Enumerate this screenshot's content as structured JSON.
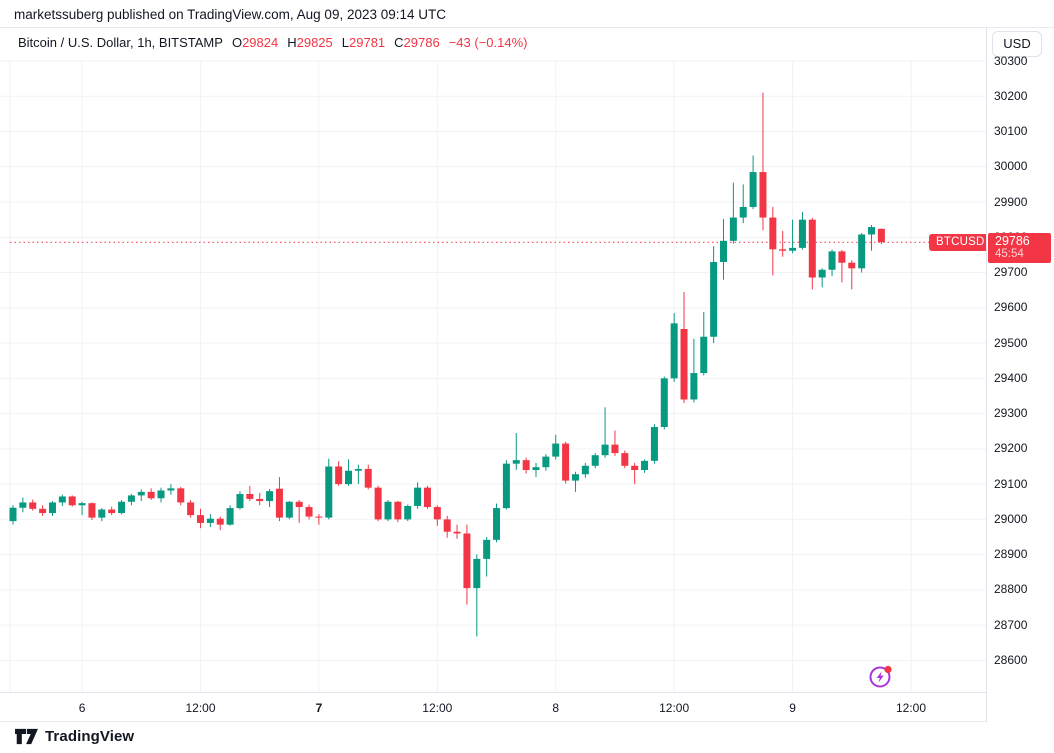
{
  "attribution": {
    "text": "marketssuberg published on TradingView.com, Aug 09, 2023 09:14 UTC"
  },
  "header": {
    "symbol_title": "Bitcoin / U.S. Dollar, 1h, BITSTAMP",
    "ohlc": [
      {
        "label": "O",
        "value": "29824"
      },
      {
        "label": "H",
        "value": "29825"
      },
      {
        "label": "L",
        "value": "29781"
      },
      {
        "label": "C",
        "value": "29786"
      }
    ],
    "change": "−43 (−0.14%)"
  },
  "price_scale": {
    "currency": "USD"
  },
  "price_label": {
    "symbol": "BTCUSD",
    "price": "29786",
    "countdown": "45:54"
  },
  "footer": {
    "logo_text": "TradingView"
  },
  "colors": {
    "up": "#089981",
    "down": "#F23645",
    "grid": "#F0F2F6",
    "axis_border": "#E0E3EB",
    "text": "#131722",
    "accent_red": "#F23645",
    "marker_purple": "#A835DD"
  },
  "chart_data": {
    "type": "candlestick",
    "title": "Bitcoin / U.S. Dollar, 1h, BITSTAMP",
    "symbol": "BTCUSD",
    "exchange": "BITSTAMP",
    "interval": "1h",
    "currency": "USD",
    "ohlc_current": {
      "open": 29824,
      "high": 29825,
      "low": 29781,
      "close": 29786,
      "change": -43,
      "change_pct": -0.14
    },
    "price_line": 29786,
    "ylim": [
      28550,
      30340
    ],
    "grid": true,
    "y_ticks": [
      30300,
      30200,
      30100,
      30000,
      29900,
      29800,
      29700,
      29600,
      29500,
      29400,
      29300,
      29200,
      29100,
      29000,
      28900,
      28800,
      28700,
      28600
    ],
    "x_ticks": [
      {
        "label": "6",
        "i": 7,
        "bold": false
      },
      {
        "label": "12:00",
        "i": 19,
        "bold": false
      },
      {
        "label": "7",
        "i": 31,
        "bold": true
      },
      {
        "label": "12:00",
        "i": 43,
        "bold": false
      },
      {
        "label": "8",
        "i": 55,
        "bold": false
      },
      {
        "label": "12:00",
        "i": 67,
        "bold": false
      },
      {
        "label": "9",
        "i": 79,
        "bold": false
      },
      {
        "label": "12:00",
        "i": 91,
        "bold": false
      }
    ],
    "candles": [
      [
        28995,
        29040,
        28985,
        29033
      ],
      [
        29033,
        29062,
        29020,
        29048
      ],
      [
        29048,
        29056,
        29025,
        29030
      ],
      [
        29030,
        29040,
        29010,
        29018
      ],
      [
        29018,
        29052,
        29010,
        29048
      ],
      [
        29048,
        29070,
        29038,
        29065
      ],
      [
        29065,
        29068,
        29036,
        29040
      ],
      [
        29040,
        29050,
        29012,
        29046
      ],
      [
        29046,
        29048,
        28998,
        29005
      ],
      [
        29005,
        29032,
        28995,
        29028
      ],
      [
        29028,
        29036,
        29012,
        29018
      ],
      [
        29018,
        29055,
        29014,
        29050
      ],
      [
        29050,
        29072,
        29040,
        29068
      ],
      [
        29068,
        29085,
        29052,
        29078
      ],
      [
        29078,
        29088,
        29055,
        29060
      ],
      [
        29060,
        29090,
        29048,
        29082
      ],
      [
        29082,
        29100,
        29070,
        29088
      ],
      [
        29088,
        29092,
        29040,
        29048
      ],
      [
        29048,
        29055,
        29005,
        29012
      ],
      [
        29012,
        29030,
        28975,
        28990
      ],
      [
        28990,
        29015,
        28978,
        29002
      ],
      [
        29002,
        29008,
        28970,
        28985
      ],
      [
        28985,
        29040,
        28982,
        29032
      ],
      [
        29032,
        29080,
        29028,
        29072
      ],
      [
        29072,
        29095,
        29052,
        29058
      ],
      [
        29058,
        29075,
        29040,
        29052
      ],
      [
        29052,
        29086,
        29035,
        29080
      ],
      [
        29087,
        29120,
        28995,
        29005
      ],
      [
        29005,
        29052,
        29000,
        29050
      ],
      [
        29050,
        29055,
        28990,
        29035
      ],
      [
        29035,
        29042,
        29000,
        29008
      ],
      [
        29008,
        29015,
        28985,
        29005
      ],
      [
        29005,
        29172,
        29000,
        29150
      ],
      [
        29150,
        29165,
        29095,
        29100
      ],
      [
        29100,
        29170,
        29095,
        29138
      ],
      [
        29138,
        29155,
        29100,
        29143
      ],
      [
        29143,
        29155,
        29085,
        29090
      ],
      [
        29090,
        29095,
        28995,
        29000
      ],
      [
        29000,
        29055,
        28995,
        29050
      ],
      [
        29050,
        29052,
        28992,
        29000
      ],
      [
        29000,
        29042,
        28995,
        29038
      ],
      [
        29038,
        29105,
        29030,
        29090
      ],
      [
        29090,
        29095,
        29030,
        29035
      ],
      [
        29035,
        29040,
        28982,
        29000
      ],
      [
        29000,
        29010,
        28948,
        28965
      ],
      [
        28965,
        28985,
        28945,
        28960
      ],
      [
        28960,
        28985,
        28758,
        28805
      ],
      [
        28805,
        28900,
        28668,
        28888
      ],
      [
        28888,
        28950,
        28838,
        28942
      ],
      [
        28942,
        29045,
        28935,
        29032
      ],
      [
        29032,
        29168,
        29028,
        29158
      ],
      [
        29158,
        29245,
        29140,
        29168
      ],
      [
        29168,
        29175,
        29130,
        29140
      ],
      [
        29140,
        29160,
        29120,
        29148
      ],
      [
        29148,
        29185,
        29138,
        29178
      ],
      [
        29178,
        29240,
        29170,
        29215
      ],
      [
        29215,
        29220,
        29102,
        29110
      ],
      [
        29110,
        29135,
        29078,
        29128
      ],
      [
        29128,
        29160,
        29118,
        29152
      ],
      [
        29152,
        29188,
        29145,
        29182
      ],
      [
        29182,
        29318,
        29175,
        29212
      ],
      [
        29212,
        29252,
        29180,
        29188
      ],
      [
        29188,
        29195,
        29145,
        29152
      ],
      [
        29152,
        29160,
        29100,
        29140
      ],
      [
        29140,
        29170,
        29132,
        29166
      ],
      [
        29166,
        29270,
        29158,
        29262
      ],
      [
        29262,
        29405,
        29255,
        29400
      ],
      [
        29400,
        29585,
        29390,
        29556
      ],
      [
        29540,
        29645,
        29330,
        29340
      ],
      [
        29340,
        29512,
        29332,
        29415
      ],
      [
        29415,
        29588,
        29408,
        29518
      ],
      [
        29518,
        29775,
        29500,
        29730
      ],
      [
        29730,
        29852,
        29680,
        29790
      ],
      [
        29790,
        29955,
        29782,
        29856
      ],
      [
        29856,
        29950,
        29840,
        29886
      ],
      [
        29886,
        30032,
        29880,
        29985
      ],
      [
        29985,
        30210,
        29820,
        29856
      ],
      [
        29856,
        29886,
        29692,
        29766
      ],
      [
        29766,
        29818,
        29745,
        29762
      ],
      [
        29762,
        29850,
        29755,
        29770
      ],
      [
        29770,
        29872,
        29765,
        29850
      ],
      [
        29850,
        29855,
        29652,
        29686
      ],
      [
        29686,
        29712,
        29658,
        29708
      ],
      [
        29708,
        29765,
        29690,
        29760
      ],
      [
        29760,
        29764,
        29672,
        29728
      ],
      [
        29728,
        29735,
        29652,
        29712
      ],
      [
        29712,
        29812,
        29700,
        29808
      ],
      [
        29808,
        29835,
        29762,
        29829
      ],
      [
        29824,
        29825,
        29781,
        29786
      ]
    ]
  }
}
